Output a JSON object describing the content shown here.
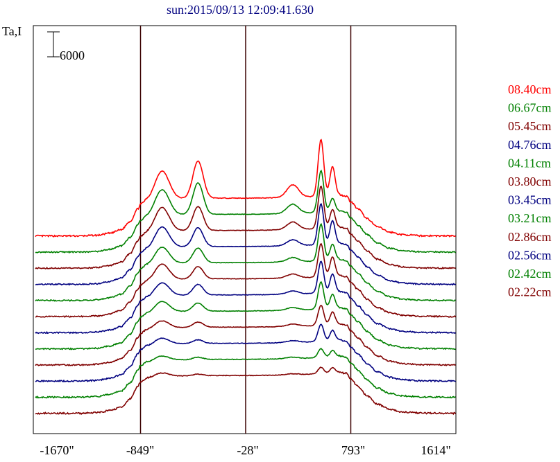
{
  "chart_data": {
    "type": "line",
    "title": "sun:2015/09/13 12:09:41.630",
    "ylabel": "Ta,I",
    "scale_bar_label": "6000",
    "scale_bar_value": 6000,
    "xlim": [
      -1670,
      1614
    ],
    "x_ticks": [
      {
        "value": -1670,
        "label": "-1670\""
      },
      {
        "value": -849,
        "label": "-849\""
      },
      {
        "value": -28,
        "label": "-28\""
      },
      {
        "value": 793,
        "label": "793\""
      },
      {
        "value": 1614,
        "label": "1614\""
      }
    ],
    "vertical_markers": [
      -849,
      -28,
      793
    ],
    "grid": false,
    "legend_position": "right",
    "profile": {
      "base_x": [
        -1670,
        -1330,
        -1190,
        -1090,
        -1000,
        -930,
        -870,
        -849,
        -800,
        -700,
        -500,
        -200,
        -28,
        100,
        400,
        600,
        700,
        760,
        793,
        850,
        920,
        1000,
        1100,
        1200,
        1350,
        1614
      ],
      "base_y": [
        0,
        0,
        150,
        650,
        1500,
        3500,
        6500,
        7600,
        8400,
        8800,
        9000,
        9100,
        9100,
        9150,
        9350,
        9600,
        9900,
        9600,
        8200,
        6500,
        4200,
        2200,
        900,
        300,
        50,
        0
      ],
      "peak_centers": [
        -680,
        -400,
        340,
        560,
        650
      ]
    },
    "series": [
      {
        "name": "08.40cm",
        "color": "#ff0000",
        "offset": 46560,
        "peaks": [
          6800,
          9000,
          3000,
          13600,
          7000
        ],
        "noise": 180
      },
      {
        "name": "06.67cm",
        "color": "#008000",
        "offset": 42680,
        "peaks": [
          6200,
          7600,
          2200,
          10000,
          3200
        ],
        "noise": 150
      },
      {
        "name": "05.45cm",
        "color": "#800000",
        "offset": 38800,
        "peaks": [
          5800,
          5800,
          1800,
          10200,
          4400
        ],
        "noise": 150
      },
      {
        "name": "04.76cm",
        "color": "#000080",
        "offset": 34920,
        "peaks": [
          5000,
          4600,
          1400,
          9800,
          5600
        ],
        "noise": 150
      },
      {
        "name": "04.11cm",
        "color": "#008000",
        "offset": 31040,
        "peaks": [
          4000,
          3600,
          1000,
          8800,
          3800
        ],
        "noise": 150
      },
      {
        "name": "03.80cm",
        "color": "#800000",
        "offset": 27160,
        "peaks": [
          3800,
          3000,
          900,
          8000,
          4600
        ],
        "noise": 150
      },
      {
        "name": "03.45cm",
        "color": "#000080",
        "offset": 23280,
        "peaks": [
          3200,
          2600,
          700,
          7600,
          4400
        ],
        "noise": 150
      },
      {
        "name": "03.21cm",
        "color": "#008000",
        "offset": 19400,
        "peaks": [
          2600,
          2000,
          600,
          6500,
          3400
        ],
        "noise": 150
      },
      {
        "name": "02.86cm",
        "color": "#800000",
        "offset": 15520,
        "peaks": [
          1800,
          1300,
          500,
          4800,
          3000
        ],
        "noise": 150
      },
      {
        "name": "02.56cm",
        "color": "#000080",
        "offset": 11640,
        "peaks": [
          1500,
          900,
          400,
          4100,
          2500
        ],
        "noise": 160
      },
      {
        "name": "02.42cm",
        "color": "#008000",
        "offset": 7760,
        "peaks": [
          1100,
          600,
          300,
          2100,
          1500
        ],
        "noise": 170
      },
      {
        "name": "02.22cm",
        "color": "#800000",
        "offset": 3880,
        "peaks": [
          900,
          400,
          200,
          1500,
          1200
        ],
        "noise": 190
      }
    ]
  }
}
